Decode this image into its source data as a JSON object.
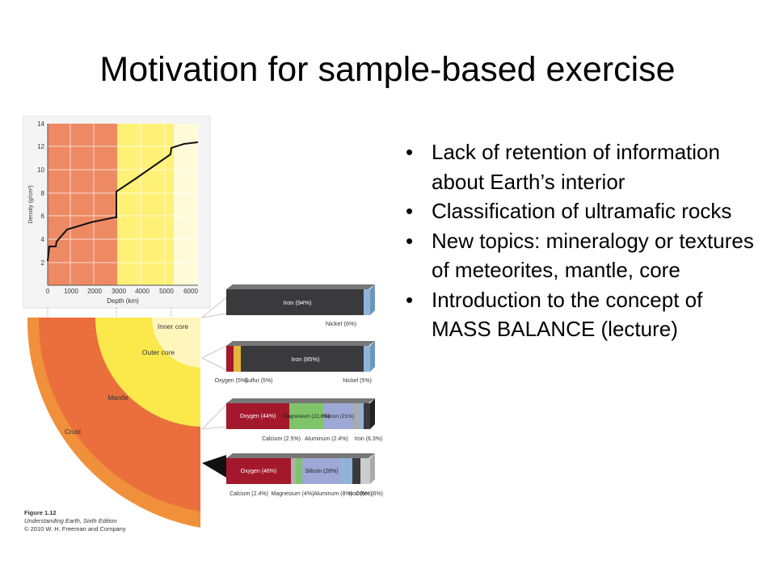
{
  "slide": {
    "title": "Motivation for sample-based exercise",
    "bullets": [
      {
        "text": "Lack of retention of information about Earth’s interior"
      },
      {
        "text": "Classification of ultramafic rocks"
      },
      {
        "text": "New topics: mineralogy or textures of meteorites, mantle, core"
      },
      {
        "text": "Introduction to the concept of MASS BALANCE (lecture)"
      }
    ],
    "bullet_glyph": "•"
  },
  "figure": {
    "density_plot": {
      "y_label": "Density (g/cm³)",
      "x_label": "Depth (km)",
      "y_ticks": [
        "14",
        "12",
        "10",
        "8",
        "6",
        "4",
        "2"
      ],
      "x_ticks": [
        "0",
        "1000",
        "2000",
        "3000",
        "4000",
        "5000",
        "6000"
      ],
      "colors": {
        "mantle": "#ee8a63",
        "outer_core": "#fff176",
        "inner_core": "#fffbd8"
      }
    },
    "earth_labels": {
      "inner_core": "Inner core",
      "outer_core": "Outer core",
      "mantle": "Mantle",
      "crust": "Crust"
    },
    "bars": {
      "inner_core": {
        "iron": "Iron (94%)",
        "nickel": "Nickel (6%)"
      },
      "outer_core": {
        "iron": "Iron (85%)",
        "oxygen": "Oxygen (5%)",
        "sulfur": "Sulfur (5%)",
        "nickel": "Nickel (5%)"
      },
      "mantle": {
        "oxygen": "Oxygen (44%)",
        "magnesium": "Magnesium (22.8%)",
        "silicon": "Silicon (21%)",
        "calcium": "Calcium (2.5%)",
        "aluminum": "Aluminum (2.4%)",
        "iron": "Iron (6.3%)"
      },
      "crust": {
        "oxygen": "Oxygen (46%)",
        "silicon": "Silicon (28%)",
        "calcium": "Calcium (2.4%)",
        "magnesium": "Magnesium (4%)",
        "aluminum": "Aluminum (8%)",
        "iron": "Iron (6%)",
        "other": "Other (6%)"
      }
    },
    "caption": {
      "line1": "Figure 1.12",
      "line2": "Understanding Earth, Sixth Edition",
      "line3": "© 2010 W. H. Freeman and Company"
    },
    "colors": {
      "iron": "#3a3a3c",
      "oxygen": "#a4182c",
      "magnesium": "#7fc46a",
      "silicon": "#9ea8d6",
      "nickel": "#8fb4d8",
      "sulfur": "#e2b53c"
    }
  }
}
